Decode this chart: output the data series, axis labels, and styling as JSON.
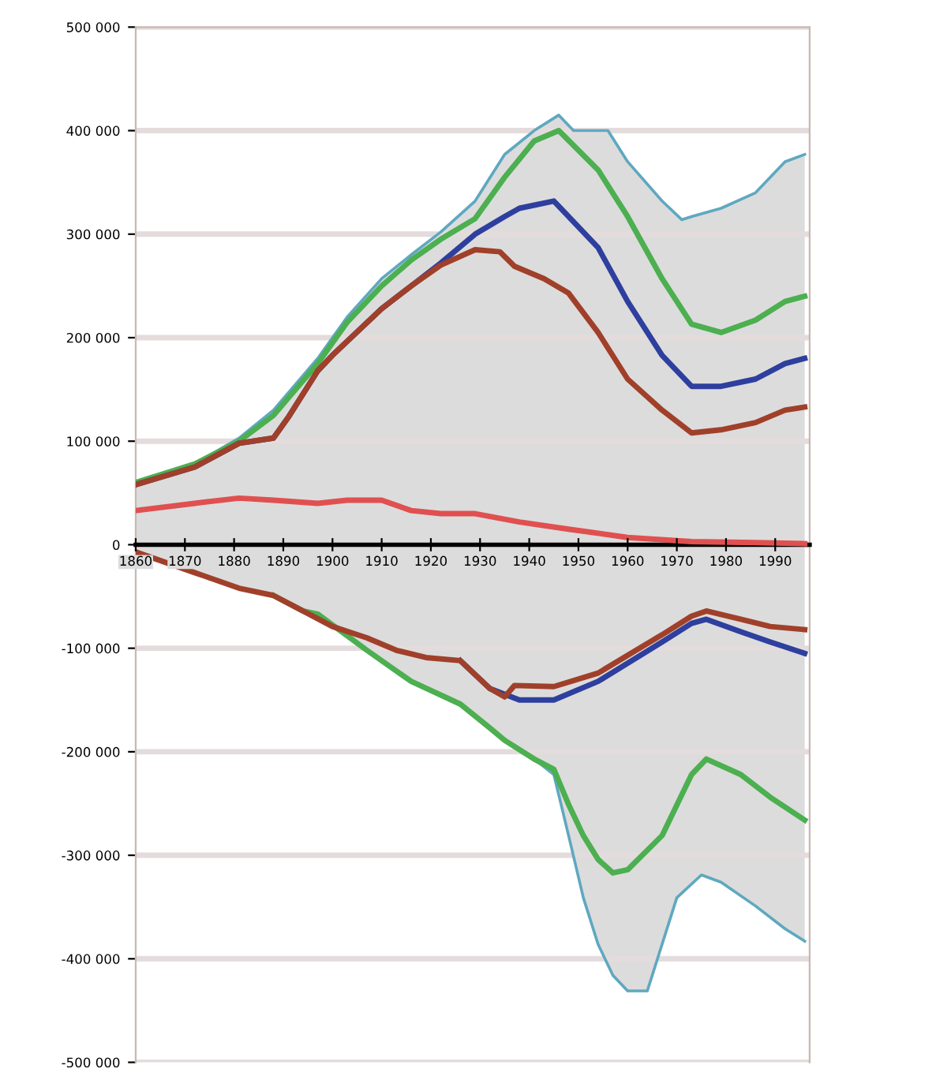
{
  "chart_data": {
    "type": "line",
    "xlim": [
      1860,
      1997
    ],
    "ylim": [
      -500000,
      500000
    ],
    "xticks": [
      1860,
      1870,
      1880,
      1890,
      1900,
      1910,
      1920,
      1930,
      1940,
      1950,
      1960,
      1970,
      1980,
      1990
    ],
    "yticks": [
      {
        "value": -500000,
        "label": "-500 000"
      },
      {
        "value": -400000,
        "label": "-400 000"
      },
      {
        "value": -300000,
        "label": "-300 000"
      },
      {
        "value": -200000,
        "label": "-200 000"
      },
      {
        "value": -100000,
        "label": "-100 000"
      },
      0,
      {
        "value": 100000,
        "label": "100 000"
      },
      {
        "value": 200000,
        "label": "200 000"
      },
      {
        "value": 300000,
        "label": "300 000"
      },
      {
        "value": 400000,
        "label": "400 000"
      },
      {
        "value": 500000,
        "label": "500 000"
      }
    ],
    "grid": "y",
    "legend": false,
    "series": [
      {
        "type": "area",
        "color": "#5fa8c0",
        "x": [
          1860,
          1872,
          1881,
          1888,
          1897,
          1903,
          1910,
          1916,
          1922,
          1929,
          1935,
          1941,
          1946,
          1949,
          1956,
          1960,
          1967,
          1971,
          1973,
          1979,
          1986,
          1992,
          1996
        ],
        "values": [
          60000,
          78000,
          103000,
          130000,
          180000,
          220000,
          257000,
          280000,
          302000,
          332000,
          377000,
          400000,
          415000,
          400000,
          400000,
          370000,
          332000,
          314000,
          317000,
          325000,
          340000,
          370000,
          377000
        ]
      },
      {
        "type": "area",
        "color": "#5fa8c0",
        "x": [
          1860,
          1872,
          1881,
          1888,
          1894,
          1897,
          1907,
          1916,
          1926,
          1932,
          1935,
          1941,
          1945,
          1948,
          1951,
          1954,
          1957,
          1960,
          1964,
          1967,
          1970,
          1975,
          1979,
          1986,
          1992,
          1996
        ],
        "values": [
          -7000,
          -27000,
          -42000,
          -49000,
          -64000,
          -67000,
          -102000,
          -132000,
          -154000,
          -177000,
          -189000,
          -207000,
          -222000,
          -281000,
          -341000,
          -386000,
          -416000,
          -431000,
          -431000,
          -386000,
          -341000,
          -319000,
          -326000,
          -349000,
          -371000,
          -383000
        ]
      },
      {
        "color": "#4caf50",
        "x": [
          1860,
          1872,
          1881,
          1888,
          1897,
          1903,
          1910,
          1916,
          1922,
          1929,
          1935,
          1941,
          1946,
          1954,
          1960,
          1967,
          1973,
          1979,
          1986,
          1992,
          1996
        ],
        "values": [
          60000,
          78000,
          100000,
          125000,
          175000,
          215000,
          250000,
          275000,
          295000,
          315000,
          355000,
          390000,
          400000,
          362000,
          317000,
          257000,
          213000,
          205000,
          217000,
          235000,
          240000
        ]
      },
      {
        "color": "#2e3f9e",
        "x": [
          1860,
          1872,
          1881,
          1888,
          1891,
          1897,
          1900,
          1910,
          1916,
          1922,
          1929,
          1935,
          1938,
          1945,
          1954,
          1960,
          1967,
          1973,
          1979,
          1986,
          1992,
          1996
        ],
        "values": [
          58000,
          75000,
          98000,
          103000,
          123000,
          168000,
          183000,
          228000,
          250000,
          272000,
          300000,
          317000,
          325000,
          332000,
          287000,
          235000,
          183000,
          153000,
          153000,
          160000,
          175000,
          180000
        ]
      },
      {
        "color": "#a0402a",
        "x": [
          1860,
          1872,
          1881,
          1888,
          1891,
          1897,
          1900,
          1910,
          1916,
          1922,
          1929,
          1934,
          1937,
          1943,
          1948,
          1954,
          1960,
          1967,
          1973,
          1979,
          1986,
          1992,
          1996
        ],
        "values": [
          58000,
          75000,
          98000,
          103000,
          123000,
          168000,
          183000,
          228000,
          250000,
          270000,
          285000,
          283000,
          269000,
          257000,
          243000,
          205000,
          160000,
          130000,
          108000,
          111000,
          118000,
          130000,
          133000
        ]
      },
      {
        "color": "#e05050",
        "x": [
          1860,
          1872,
          1881,
          1888,
          1897,
          1903,
          1910,
          1916,
          1922,
          1929,
          1938,
          1948,
          1960,
          1973,
          1986,
          1996
        ],
        "values": [
          33000,
          40000,
          45000,
          43000,
          40000,
          43000,
          43000,
          33000,
          30000,
          30000,
          22000,
          15000,
          7000,
          3000,
          2000,
          1000
        ]
      },
      {
        "color": "#4caf50",
        "x": [
          1888,
          1894,
          1897,
          1907,
          1916,
          1926,
          1932,
          1935,
          1941,
          1945,
          1948,
          1951,
          1954,
          1957,
          1960,
          1967,
          1973,
          1976,
          1983,
          1989,
          1996
        ],
        "values": [
          -49000,
          -64000,
          -67000,
          -102000,
          -132000,
          -154000,
          -177000,
          -189000,
          -207000,
          -217000,
          -251000,
          -281000,
          -304000,
          -317000,
          -314000,
          -281000,
          -222000,
          -207000,
          -222000,
          -244000,
          -266000
        ]
      },
      {
        "color": "#2e3f9e",
        "x": [
          1926,
          1932,
          1938,
          1945,
          1954,
          1967,
          1973,
          1976,
          1983,
          1989,
          1996
        ],
        "values": [
          -112000,
          -139000,
          -150000,
          -150000,
          -132000,
          -94000,
          -76000,
          -72000,
          -84000,
          -94000,
          -105000
        ]
      },
      {
        "color": "#a0402a",
        "x": [
          1860,
          1872,
          1881,
          1888,
          1894,
          1900,
          1907,
          1913,
          1919,
          1926,
          1932,
          1935,
          1937,
          1945,
          1954,
          1967,
          1973,
          1976,
          1983,
          1989,
          1996
        ],
        "values": [
          -7000,
          -27000,
          -42000,
          -49000,
          -64000,
          -79000,
          -90000,
          -102000,
          -109000,
          -112000,
          -139000,
          -147000,
          -136000,
          -137000,
          -124000,
          -87000,
          -69000,
          -64000,
          -72000,
          -79000,
          -82000
        ]
      }
    ]
  }
}
